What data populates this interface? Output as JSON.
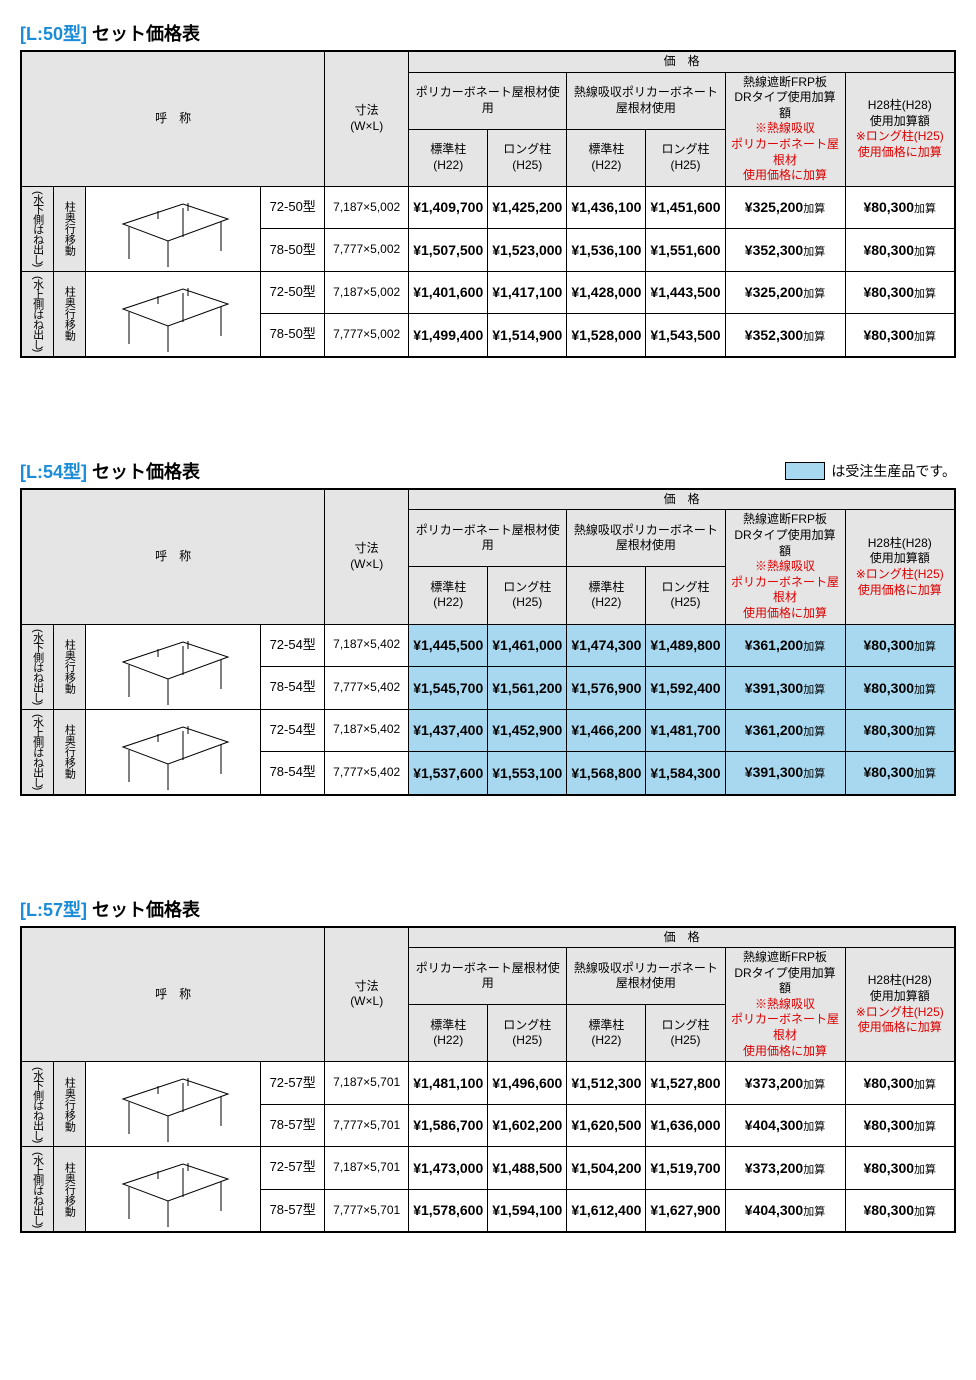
{
  "legend_note": "は受注生産品です。",
  "colors": {
    "accent_blue": "#1a8cd8",
    "highlight_blue": "#a8d8ef",
    "header_gray": "#e5e5e5",
    "red": "#d00000",
    "border": "#000000"
  },
  "common_headers": {
    "meisho": "呼　称",
    "sunpo": "寸法\n(W×L)",
    "kakaku": "価　格",
    "poly": "ポリカーボネート屋根材使用",
    "heat_poly": "熱線吸収ポリカーボネート屋根材使用",
    "std_col": "標準柱\n(H22)",
    "long_col": "ロング柱\n(H25)",
    "frp_l1": "熱線遮断FRP板",
    "frp_l2": "DRタイプ使用加算額",
    "frp_l3": "※熱線吸収",
    "frp_l4": "ポリカーボネート屋根材",
    "frp_l5": "使用価格に加算",
    "h28_l1": "H28柱(H28)",
    "h28_l2": "使用加算額",
    "h28_l3": "※ロング柱(H25)",
    "h28_l4": "使用価格に加算",
    "side_a": "(水下側はね出し)",
    "side_b": "(水上側はね出し)",
    "col_move": "柱奥行移動",
    "kasan_suffix": "加算"
  },
  "tables": [
    {
      "code": "[L:50型]",
      "label": " セット価格表",
      "show_legend": false,
      "highlight": false,
      "groups": [
        {
          "side": "a",
          "rows": [
            {
              "model": "72-50型",
              "dim": "7,187×5,002",
              "p": [
                "¥1,409,700",
                "¥1,425,200",
                "¥1,436,100",
                "¥1,451,600"
              ],
              "frp": "¥325,200",
              "h28": "¥80,300"
            },
            {
              "model": "78-50型",
              "dim": "7,777×5,002",
              "p": [
                "¥1,507,500",
                "¥1,523,000",
                "¥1,536,100",
                "¥1,551,600"
              ],
              "frp": "¥352,300",
              "h28": "¥80,300"
            }
          ]
        },
        {
          "side": "b",
          "rows": [
            {
              "model": "72-50型",
              "dim": "7,187×5,002",
              "p": [
                "¥1,401,600",
                "¥1,417,100",
                "¥1,428,000",
                "¥1,443,500"
              ],
              "frp": "¥325,200",
              "h28": "¥80,300"
            },
            {
              "model": "78-50型",
              "dim": "7,777×5,002",
              "p": [
                "¥1,499,400",
                "¥1,514,900",
                "¥1,528,000",
                "¥1,543,500"
              ],
              "frp": "¥352,300",
              "h28": "¥80,300"
            }
          ]
        }
      ]
    },
    {
      "code": "[L:54型]",
      "label": " セット価格表",
      "show_legend": true,
      "highlight": true,
      "groups": [
        {
          "side": "a",
          "rows": [
            {
              "model": "72-54型",
              "dim": "7,187×5,402",
              "p": [
                "¥1,445,500",
                "¥1,461,000",
                "¥1,474,300",
                "¥1,489,800"
              ],
              "frp": "¥361,200",
              "h28": "¥80,300"
            },
            {
              "model": "78-54型",
              "dim": "7,777×5,402",
              "p": [
                "¥1,545,700",
                "¥1,561,200",
                "¥1,576,900",
                "¥1,592,400"
              ],
              "frp": "¥391,300",
              "h28": "¥80,300"
            }
          ]
        },
        {
          "side": "b",
          "rows": [
            {
              "model": "72-54型",
              "dim": "7,187×5,402",
              "p": [
                "¥1,437,400",
                "¥1,452,900",
                "¥1,466,200",
                "¥1,481,700"
              ],
              "frp": "¥361,200",
              "h28": "¥80,300"
            },
            {
              "model": "78-54型",
              "dim": "7,777×5,402",
              "p": [
                "¥1,537,600",
                "¥1,553,100",
                "¥1,568,800",
                "¥1,584,300"
              ],
              "frp": "¥391,300",
              "h28": "¥80,300"
            }
          ]
        }
      ]
    },
    {
      "code": "[L:57型]",
      "label": " セット価格表",
      "show_legend": false,
      "highlight": false,
      "groups": [
        {
          "side": "a",
          "rows": [
            {
              "model": "72-57型",
              "dim": "7,187×5,701",
              "p": [
                "¥1,481,100",
                "¥1,496,600",
                "¥1,512,300",
                "¥1,527,800"
              ],
              "frp": "¥373,200",
              "h28": "¥80,300"
            },
            {
              "model": "78-57型",
              "dim": "7,777×5,701",
              "p": [
                "¥1,586,700",
                "¥1,602,200",
                "¥1,620,500",
                "¥1,636,000"
              ],
              "frp": "¥404,300",
              "h28": "¥80,300"
            }
          ]
        },
        {
          "side": "b",
          "rows": [
            {
              "model": "72-57型",
              "dim": "7,187×5,701",
              "p": [
                "¥1,473,000",
                "¥1,488,500",
                "¥1,504,200",
                "¥1,519,700"
              ],
              "frp": "¥373,200",
              "h28": "¥80,300"
            },
            {
              "model": "78-57型",
              "dim": "7,777×5,701",
              "p": [
                "¥1,578,600",
                "¥1,594,100",
                "¥1,612,400",
                "¥1,627,900"
              ],
              "frp": "¥404,300",
              "h28": "¥80,300"
            }
          ]
        }
      ]
    }
  ]
}
